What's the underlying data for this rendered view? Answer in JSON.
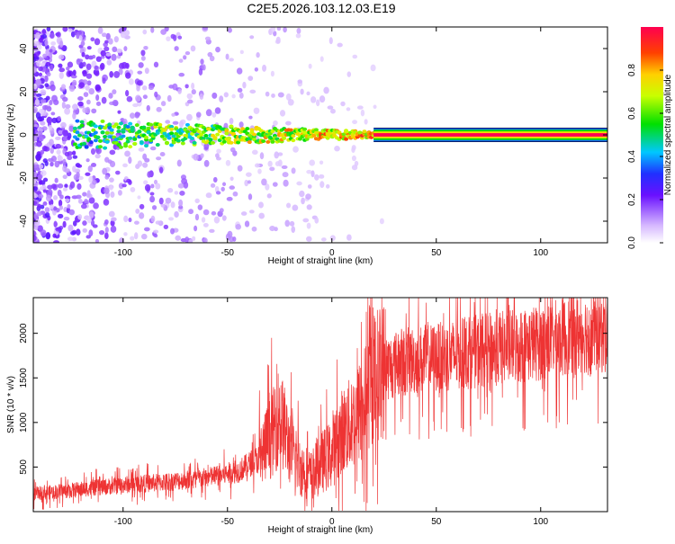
{
  "title": "C2E5.2026.103.12.03.E19",
  "colors": {
    "line": "#ee3333",
    "core": "#e8004a",
    "background": "#ffffff"
  },
  "chart_data": [
    {
      "type": "heatmap",
      "xlabel": "Height of straight line (km)",
      "ylabel": "Frequency (Hz)",
      "xlim": [
        -143,
        132
      ],
      "ylim": [
        -50,
        50
      ],
      "xticks": [
        -100,
        -50,
        0,
        50,
        100
      ],
      "yticks": [
        -40,
        -20,
        0,
        20,
        40
      ],
      "colorbar": {
        "label": "Normalized spectral amplitude",
        "range": [
          0,
          1
        ],
        "ticks": [
          "0.0",
          "0.2",
          "0.4",
          "0.6",
          "0.8"
        ]
      },
      "description_points": {
        "signal_band_center_hz": 0,
        "noise_cloud_x_range": [
          -143,
          -5
        ],
        "coherent_band_start_km": 20
      }
    },
    {
      "type": "line",
      "xlabel": "Height of straight line (km)",
      "ylabel": "SNR (10 * v/v)",
      "xlim": [
        -143,
        132
      ],
      "ylim": [
        0,
        2400
      ],
      "xticks": [
        -100,
        -50,
        0,
        50,
        100
      ],
      "yticks": [
        500,
        1000,
        1500,
        2000
      ],
      "series": [
        {
          "x": [
            -143,
            -120,
            -100,
            -80,
            -60,
            -45,
            -35,
            -28,
            -25,
            -20,
            -15,
            -10,
            -5,
            0,
            5,
            10,
            15,
            20,
            25,
            30,
            40,
            50,
            60,
            70,
            80,
            90,
            100,
            110,
            120,
            132
          ],
          "values": [
            200,
            250,
            300,
            330,
            380,
            450,
            600,
            900,
            1100,
            700,
            500,
            400,
            550,
            650,
            900,
            1000,
            1200,
            1500,
            1600,
            1650,
            1700,
            1720,
            1760,
            1800,
            1830,
            1860,
            1900,
            1950,
            2000,
            2000
          ]
        }
      ]
    }
  ]
}
